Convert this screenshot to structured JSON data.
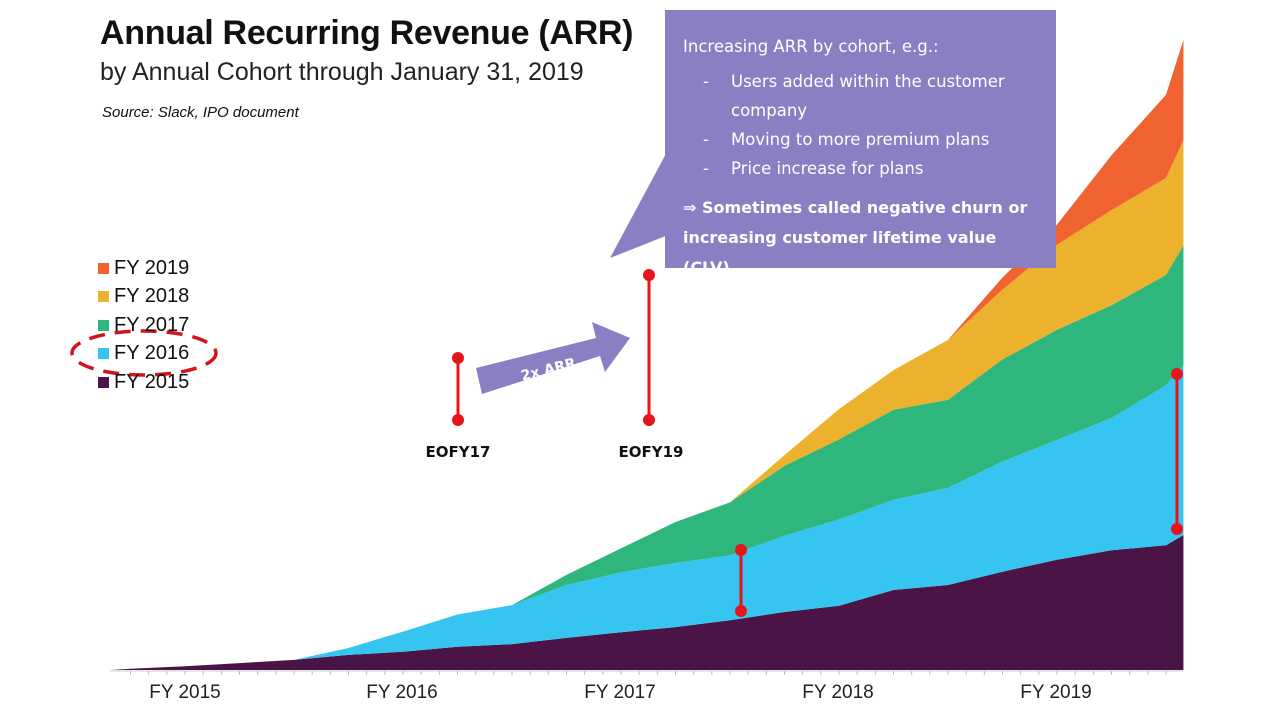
{
  "header": {
    "title": "Annual Recurring Revenue (ARR)",
    "subtitle": "by Annual Cohort through January 31, 2019",
    "source": "Source: Slack, IPO document"
  },
  "callout": {
    "heading": "Increasing ARR by cohort, e.g.:",
    "bullets": [
      "Users added within the customer company",
      "Moving to more premium plans",
      "Price increase for plans"
    ],
    "conclusion": "⇒ Sometimes called negative churn or increasing customer lifetime value (CLV)",
    "color": "#8b7fc4"
  },
  "annotations": {
    "arrow_label": "2x ARR",
    "eofy17": "EOFY17",
    "eofy19": "EOFY19",
    "marker_color": "#e8141b",
    "highlighted_legend": "FY 2016"
  },
  "chart_data": {
    "type": "area",
    "stacked": true,
    "title": "Annual Recurring Revenue (ARR)",
    "xlabel": "",
    "ylabel": "",
    "x_tick_labels": [
      "FY 2015",
      "FY 2016",
      "FY 2017",
      "FY 2018",
      "FY 2019"
    ],
    "x_ticks": [
      2015,
      2016,
      2017,
      2018,
      2019
    ],
    "xlim": [
      2014.66,
      2019.58
    ],
    "ylim": [
      0,
      100
    ],
    "y_axis_shown": false,
    "grid": false,
    "legend_placement": "left",
    "x": [
      2014.75,
      2015.0,
      2015.25,
      2015.5,
      2015.75,
      2016.0,
      2016.25,
      2016.5,
      2016.75,
      2017.0,
      2017.25,
      2017.5,
      2017.75,
      2018.0,
      2018.25,
      2018.5,
      2018.75,
      2019.0,
      2019.25,
      2019.5,
      2019.58
    ],
    "series": [
      {
        "name": "FY 2015",
        "color": "#4a1546",
        "values": [
          0.2,
          0.6,
          1.1,
          1.6,
          2.4,
          2.9,
          3.7,
          4.1,
          5.1,
          6.0,
          6.8,
          7.9,
          9.2,
          10.2,
          12.7,
          13.5,
          15.6,
          17.5,
          19.0,
          19.8,
          21.4
        ]
      },
      {
        "name": "FY 2016",
        "color": "#36c5f0",
        "values": [
          0,
          0,
          0,
          0,
          1.1,
          3.2,
          5.1,
          6.2,
          8.4,
          9.5,
          10.2,
          10.3,
          12.1,
          13.7,
          14.3,
          15.4,
          17.5,
          19.0,
          21.0,
          25.4,
          27.0
        ]
      },
      {
        "name": "FY 2017",
        "color": "#2eb67d",
        "values": [
          0,
          0,
          0,
          0,
          0,
          0,
          0,
          0,
          1.6,
          3.8,
          6.5,
          8.4,
          11.1,
          12.7,
          14.3,
          14.0,
          16.2,
          17.5,
          17.9,
          17.5,
          19.0
        ]
      },
      {
        "name": "FY 2018",
        "color": "#ecb22e",
        "values": [
          0,
          0,
          0,
          0,
          0,
          0,
          0,
          0,
          0,
          0,
          0,
          0,
          1.7,
          4.8,
          6.3,
          9.5,
          11.1,
          13.5,
          15.1,
          15.4,
          16.7
        ]
      },
      {
        "name": "FY 2019",
        "color": "#f0622f",
        "values": [
          0,
          0,
          0,
          0,
          0,
          0,
          0,
          0,
          0,
          0,
          0,
          0,
          0,
          0,
          0,
          0,
          1.9,
          3.2,
          8.7,
          13.2,
          15.9
        ]
      }
    ]
  }
}
